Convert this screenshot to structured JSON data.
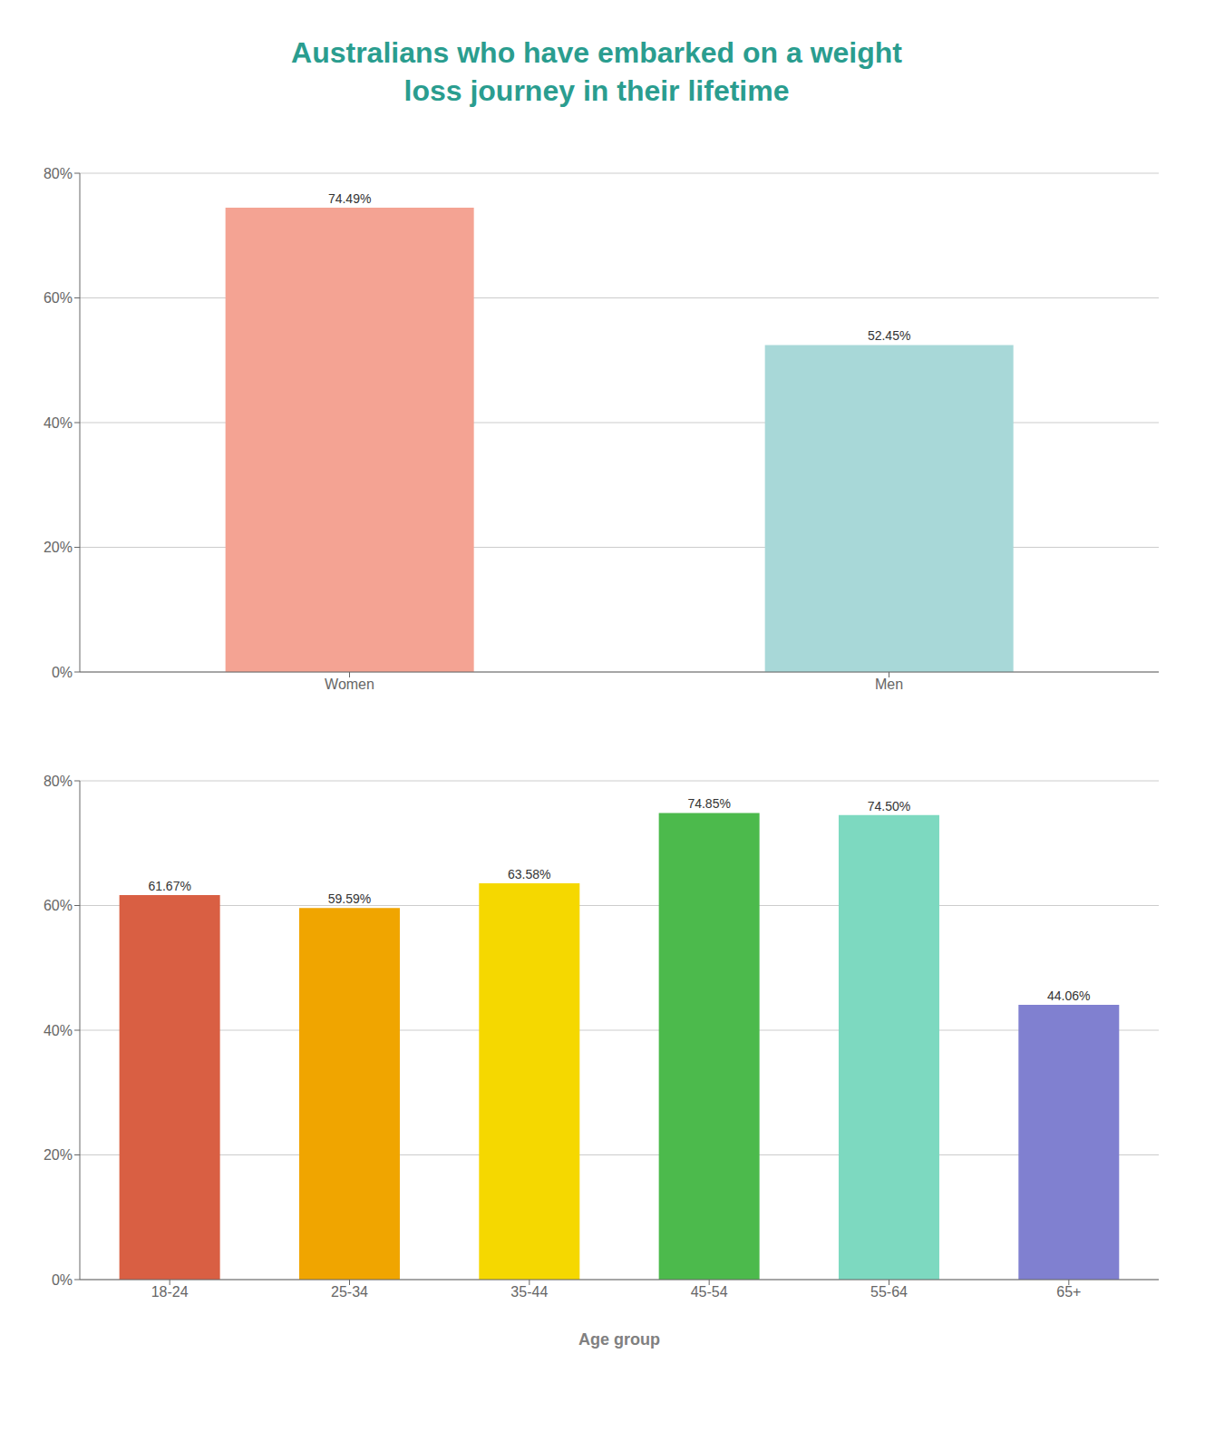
{
  "chart_data": [
    {
      "type": "bar",
      "title": "Australians who have embarked on a weight\nloss journey in their lifetime",
      "categories": [
        "Women",
        "Men"
      ],
      "values": [
        74.49,
        52.45
      ],
      "value_labels": [
        "74.49%",
        "52.45%"
      ],
      "colors": [
        "#f4a393",
        "#a8d8d8"
      ],
      "ylim": [
        0,
        80
      ],
      "yticks": [
        {
          "value": 0,
          "label": "0%"
        },
        {
          "value": 20,
          "label": "20%"
        },
        {
          "value": 40,
          "label": "40%"
        },
        {
          "value": 60,
          "label": "60%"
        },
        {
          "value": 80,
          "label": "80%"
        }
      ],
      "grid": true,
      "data_labels": true
    },
    {
      "type": "bar",
      "xlabel": "Age group",
      "categories": [
        "18-24",
        "25-34",
        "35-44",
        "45-54",
        "55-64",
        "65+"
      ],
      "values": [
        61.67,
        59.59,
        63.58,
        74.85,
        74.5,
        44.06
      ],
      "value_labels": [
        "61.67%",
        "59.59%",
        "63.58%",
        "74.85%",
        "74.50%",
        "44.06%"
      ],
      "colors": [
        "#d95f43",
        "#f0a500",
        "#f5d800",
        "#4cba4c",
        "#7dd9c0",
        "#8080d0"
      ],
      "ylim": [
        0,
        80
      ],
      "yticks": [
        {
          "value": 0,
          "label": "0%"
        },
        {
          "value": 20,
          "label": "20%"
        },
        {
          "value": 40,
          "label": "40%"
        },
        {
          "value": 60,
          "label": "60%"
        },
        {
          "value": 80,
          "label": "80%"
        }
      ],
      "grid": true,
      "data_labels": true
    }
  ]
}
